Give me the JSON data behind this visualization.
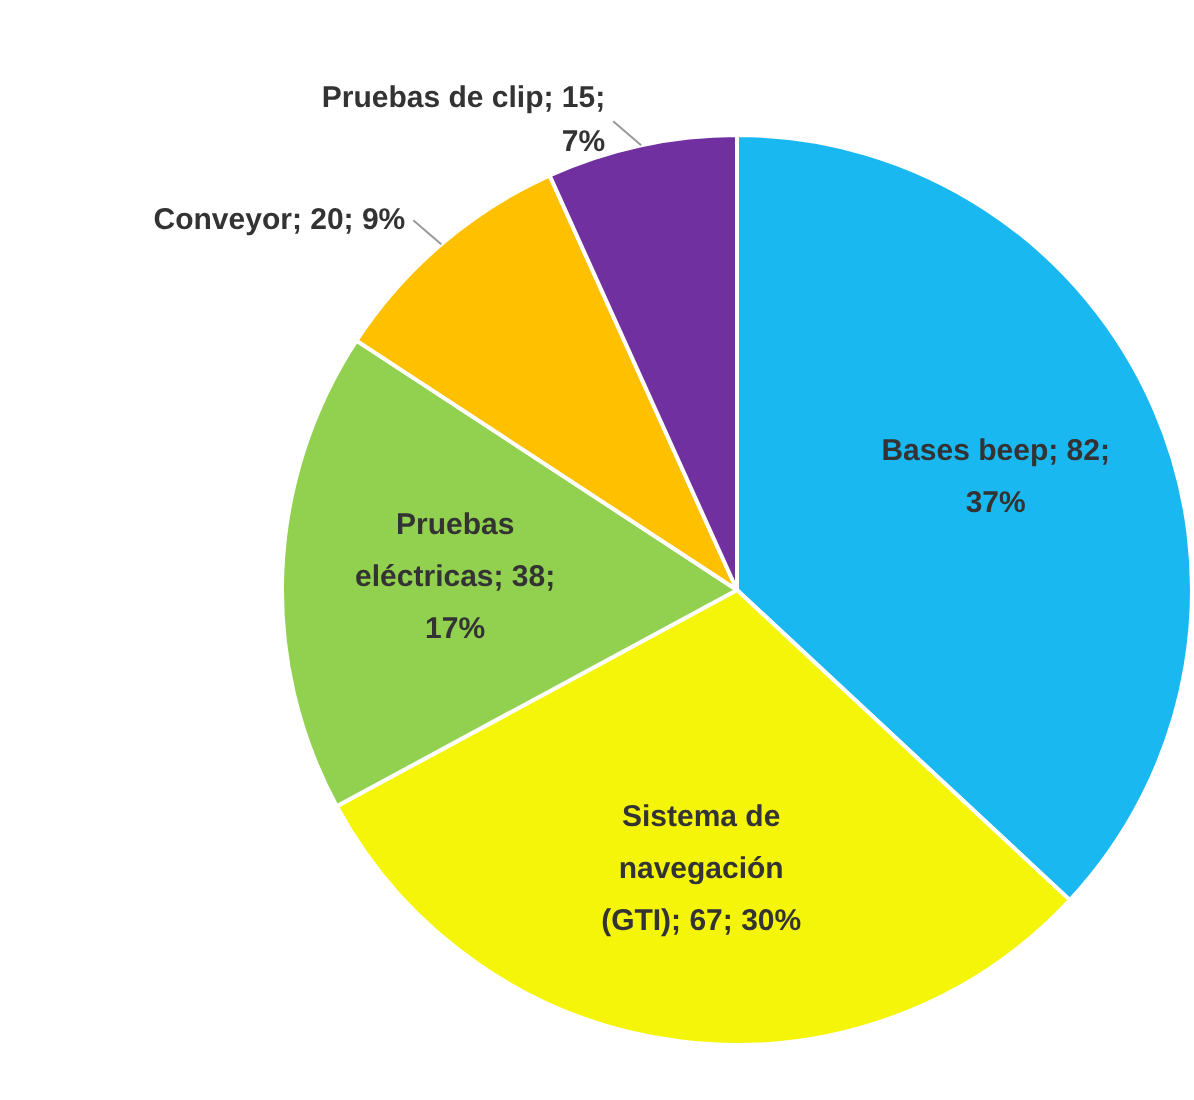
{
  "chart_data": {
    "type": "pie",
    "categories": [
      "Bases beep",
      "Sistema de navegación (GTI)",
      "Pruebas eléctricas",
      "Conveyor",
      "Pruebas de clip"
    ],
    "values": [
      82,
      67,
      38,
      20,
      15
    ],
    "colors": [
      "#1ab8f0",
      "#f5f50a",
      "#92d050",
      "#ffc000",
      "#7030a0"
    ],
    "value_labels": [
      "82; 37%",
      "67; 30%",
      "38; 17%",
      "20; 9%",
      "15; 7%"
    ],
    "legend": false
  }
}
